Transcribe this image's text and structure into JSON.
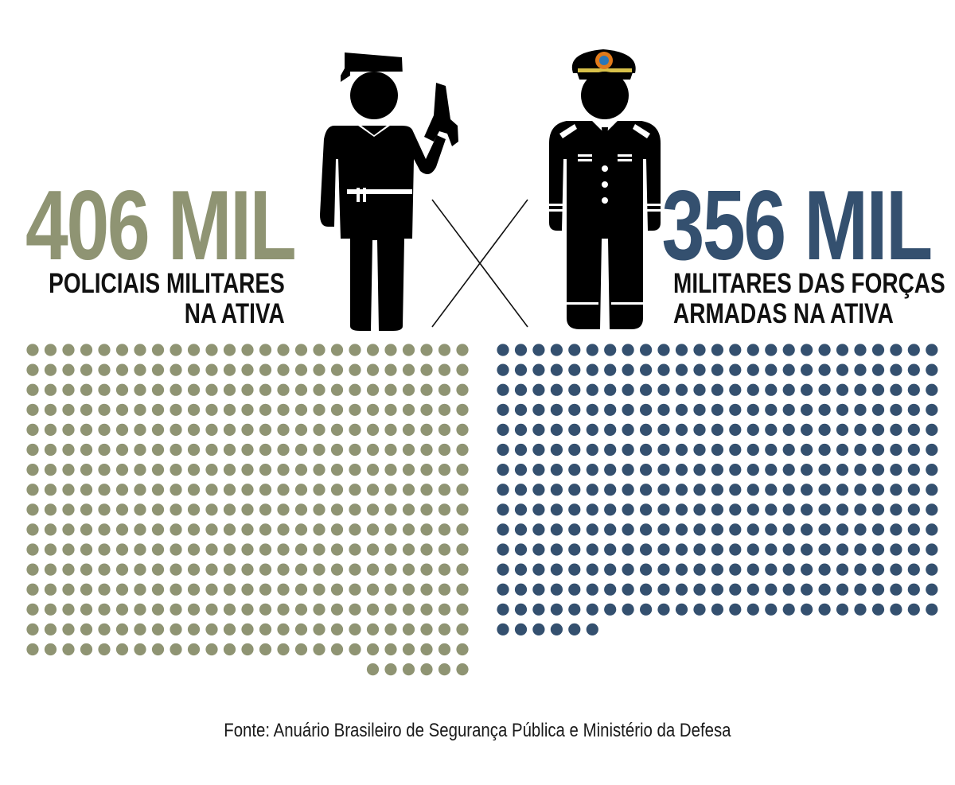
{
  "left": {
    "number": "406 MIL",
    "caption_line1": "POLICIAIS MILITARES",
    "caption_line2": "NA ATIVA",
    "color": "#8f9473",
    "dot_rows": [
      25,
      25,
      25,
      25,
      25,
      25,
      25,
      25,
      25,
      25,
      25,
      25,
      25,
      25,
      25,
      25,
      6
    ],
    "icon": "police-officer-with-pistol-icon"
  },
  "right": {
    "number": "356 MIL",
    "caption_line1": "MILITARES DAS FORÇAS",
    "caption_line2": "ARMADAS NA ATIVA",
    "color": "#34506f",
    "dot_rows": [
      25,
      25,
      25,
      25,
      25,
      25,
      25,
      25,
      25,
      25,
      25,
      25,
      25,
      25,
      6
    ],
    "icon": "armed-forces-officer-icon"
  },
  "versus_icon": "cross-x-icon",
  "source": "Fonte: Anuário Brasileiro de Segurança Pública e Ministério da Defesa"
}
